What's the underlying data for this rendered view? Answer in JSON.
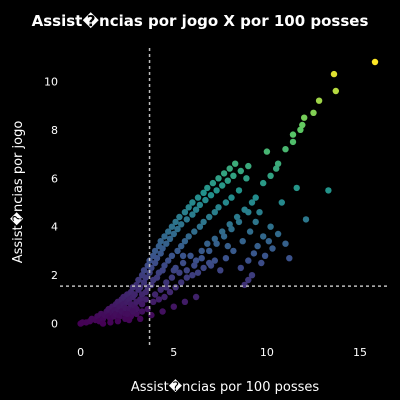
{
  "chart_data": {
    "type": "scatter",
    "title": "Assist�ncias por jogo X por 100 posses",
    "xlabel": "Assist�ncias por 100 posses",
    "ylabel": "Assist�ncias por jogo",
    "x_ticks": [
      0,
      5,
      10,
      15
    ],
    "y_ticks": [
      0,
      2,
      4,
      6,
      8,
      10
    ],
    "xlim": [
      -1,
      16.5
    ],
    "ylim": [
      -0.8,
      11.5
    ],
    "reference_lines": {
      "vertical_x": 3.7,
      "horizontal_y": 1.55
    },
    "colorscale": [
      "#440154",
      "#3b528b",
      "#21918c",
      "#5ec962",
      "#fde725"
    ],
    "background": "#000000",
    "grid": false,
    "points": [
      [
        0.0,
        0.0
      ],
      [
        0.1,
        0.05
      ],
      [
        0.3,
        0.05
      ],
      [
        0.5,
        0.1
      ],
      [
        0.6,
        0.2
      ],
      [
        0.8,
        0.15
      ],
      [
        0.9,
        0.3
      ],
      [
        1.0,
        0.1
      ],
      [
        1.1,
        0.4
      ],
      [
        1.2,
        0.2
      ],
      [
        1.3,
        0.35
      ],
      [
        1.4,
        0.5
      ],
      [
        1.5,
        0.3
      ],
      [
        1.5,
        0.6
      ],
      [
        1.6,
        0.2
      ],
      [
        1.7,
        0.45
      ],
      [
        1.7,
        0.7
      ],
      [
        1.8,
        0.3
      ],
      [
        1.8,
        0.55
      ],
      [
        1.9,
        0.8
      ],
      [
        1.9,
        0.4
      ],
      [
        2.0,
        0.6
      ],
      [
        2.0,
        0.9
      ],
      [
        2.1,
        0.3
      ],
      [
        2.1,
        0.7
      ],
      [
        2.2,
        1.0
      ],
      [
        2.2,
        0.5
      ],
      [
        2.3,
        0.8
      ],
      [
        2.3,
        1.1
      ],
      [
        2.4,
        0.4
      ],
      [
        2.4,
        0.65
      ],
      [
        2.5,
        0.9
      ],
      [
        2.5,
        1.2
      ],
      [
        2.6,
        0.6
      ],
      [
        2.6,
        1.0
      ],
      [
        2.7,
        1.3
      ],
      [
        2.7,
        0.8
      ],
      [
        2.8,
        1.1
      ],
      [
        2.8,
        1.5
      ],
      [
        2.9,
        0.7
      ],
      [
        2.9,
        1.2
      ],
      [
        3.0,
        1.6
      ],
      [
        3.0,
        0.9
      ],
      [
        3.1,
        1.4
      ],
      [
        3.1,
        1.8
      ],
      [
        3.2,
        1.0
      ],
      [
        3.2,
        1.5
      ],
      [
        3.3,
        2.0
      ],
      [
        3.3,
        1.2
      ],
      [
        3.4,
        1.7
      ],
      [
        3.4,
        2.2
      ],
      [
        3.5,
        1.3
      ],
      [
        3.5,
        1.9
      ],
      [
        3.6,
        2.4
      ],
      [
        3.6,
        1.5
      ],
      [
        3.7,
        2.1
      ],
      [
        3.7,
        2.6
      ],
      [
        3.8,
        1.6
      ],
      [
        3.8,
        2.3
      ],
      [
        3.9,
        2.8
      ],
      [
        3.9,
        1.8
      ],
      [
        4.0,
        2.5
      ],
      [
        4.0,
        3.0
      ],
      [
        4.1,
        1.9
      ],
      [
        4.1,
        2.7
      ],
      [
        4.2,
        3.2
      ],
      [
        4.2,
        2.1
      ],
      [
        4.3,
        2.9
      ],
      [
        4.3,
        3.4
      ],
      [
        4.4,
        2.2
      ],
      [
        4.4,
        3.1
      ],
      [
        4.5,
        3.6
      ],
      [
        4.5,
        2.4
      ],
      [
        4.6,
        3.3
      ],
      [
        4.7,
        3.8
      ],
      [
        4.7,
        2.6
      ],
      [
        4.8,
        3.5
      ],
      [
        4.9,
        4.0
      ],
      [
        4.9,
        2.8
      ],
      [
        5.0,
        3.7
      ],
      [
        5.0,
        2.2
      ],
      [
        5.1,
        4.2
      ],
      [
        5.2,
        3.0
      ],
      [
        5.2,
        3.9
      ],
      [
        5.3,
        4.4
      ],
      [
        5.4,
        3.2
      ],
      [
        5.4,
        4.1
      ],
      [
        5.5,
        2.5
      ],
      [
        5.6,
        4.6
      ],
      [
        5.6,
        3.4
      ],
      [
        5.7,
        4.3
      ],
      [
        5.8,
        4.8
      ],
      [
        5.8,
        3.6
      ],
      [
        5.9,
        2.8
      ],
      [
        6.0,
        4.5
      ],
      [
        6.0,
        5.0
      ],
      [
        6.1,
        3.8
      ],
      [
        6.2,
        4.7
      ],
      [
        6.2,
        2.6
      ],
      [
        6.3,
        5.2
      ],
      [
        6.4,
        4.0
      ],
      [
        6.4,
        4.9
      ],
      [
        6.5,
        3.0
      ],
      [
        6.6,
        5.4
      ],
      [
        6.6,
        4.2
      ],
      [
        6.7,
        5.1
      ],
      [
        6.8,
        3.3
      ],
      [
        6.8,
        5.6
      ],
      [
        6.9,
        4.4
      ],
      [
        7.0,
        5.3
      ],
      [
        7.0,
        2.4
      ],
      [
        7.1,
        5.8
      ],
      [
        7.2,
        4.6
      ],
      [
        7.2,
        3.5
      ],
      [
        7.3,
        5.5
      ],
      [
        7.4,
        6.0
      ],
      [
        7.4,
        4.8
      ],
      [
        7.5,
        2.2
      ],
      [
        7.6,
        5.7
      ],
      [
        7.6,
        3.8
      ],
      [
        7.7,
        6.2
      ],
      [
        7.8,
        5.0
      ],
      [
        7.8,
        2.7
      ],
      [
        7.9,
        5.9
      ],
      [
        8.0,
        6.4
      ],
      [
        8.0,
        4.1
      ],
      [
        8.1,
        5.2
      ],
      [
        8.2,
        3.0
      ],
      [
        8.2,
        6.1
      ],
      [
        8.3,
        6.6
      ],
      [
        8.4,
        4.4
      ],
      [
        8.5,
        5.5
      ],
      [
        8.6,
        2.3
      ],
      [
        8.6,
        6.3
      ],
      [
        8.7,
        3.4
      ],
      [
        8.8,
        4.7
      ],
      [
        8.9,
        6.0
      ],
      [
        9.0,
        2.6
      ],
      [
        9.0,
        6.5
      ],
      [
        9.1,
        3.8
      ],
      [
        9.2,
        5.0
      ],
      [
        9.3,
        2.9
      ],
      [
        9.4,
        4.2
      ],
      [
        9.5,
        3.2
      ],
      [
        9.6,
        4.6
      ],
      [
        9.7,
        2.5
      ],
      [
        9.8,
        3.6
      ],
      [
        9.9,
        2.8
      ],
      [
        10.0,
        7.1
      ],
      [
        10.1,
        3.4
      ],
      [
        10.2,
        4.0
      ],
      [
        10.3,
        3.1
      ],
      [
        10.5,
        6.4
      ],
      [
        10.6,
        3.7
      ],
      [
        10.8,
        5.0
      ],
      [
        11.0,
        3.3
      ],
      [
        11.2,
        2.7
      ],
      [
        11.4,
        7.5
      ],
      [
        11.6,
        5.6
      ],
      [
        11.8,
        8.0
      ],
      [
        12.0,
        8.5
      ],
      [
        12.1,
        4.3
      ],
      [
        12.5,
        8.7
      ],
      [
        12.8,
        9.2
      ],
      [
        13.3,
        5.5
      ],
      [
        13.6,
        10.3
      ],
      [
        13.7,
        9.6
      ],
      [
        15.8,
        10.8
      ],
      [
        2.4,
        0.2
      ],
      [
        2.7,
        0.3
      ],
      [
        3.0,
        0.4
      ],
      [
        3.3,
        0.5
      ],
      [
        3.6,
        0.6
      ],
      [
        3.9,
        0.9
      ],
      [
        4.2,
        1.0
      ],
      [
        4.5,
        1.1
      ],
      [
        4.8,
        1.3
      ],
      [
        5.1,
        1.5
      ],
      [
        5.4,
        1.7
      ],
      [
        5.7,
        1.9
      ],
      [
        6.0,
        2.0
      ],
      [
        6.3,
        2.1
      ],
      [
        6.6,
        2.3
      ],
      [
        6.9,
        2.5
      ],
      [
        7.2,
        2.6
      ],
      [
        8.8,
        1.6
      ],
      [
        9.0,
        1.8
      ],
      [
        9.2,
        2.0
      ],
      [
        1.2,
        0.0
      ],
      [
        1.6,
        0.05
      ],
      [
        2.0,
        0.1
      ],
      [
        2.6,
        0.15
      ],
      [
        3.2,
        0.2
      ],
      [
        3.8,
        0.35
      ],
      [
        4.4,
        0.5
      ],
      [
        5.0,
        0.7
      ],
      [
        5.6,
        0.9
      ],
      [
        6.2,
        1.1
      ],
      [
        4.6,
        1.5
      ],
      [
        4.9,
        1.9
      ],
      [
        5.3,
        2.1
      ],
      [
        5.7,
        2.2
      ],
      [
        6.1,
        2.4
      ],
      [
        6.5,
        2.7
      ],
      [
        6.9,
        3.0
      ],
      [
        7.3,
        3.3
      ],
      [
        7.7,
        3.6
      ],
      [
        8.1,
        3.9
      ],
      [
        9.0,
        4.6
      ],
      [
        9.4,
        5.2
      ],
      [
        9.8,
        5.8
      ],
      [
        10.2,
        6.1
      ],
      [
        10.6,
        6.6
      ],
      [
        11.0,
        7.2
      ],
      [
        11.4,
        7.8
      ],
      [
        11.9,
        8.2
      ],
      [
        8.5,
        4.2
      ],
      [
        7.9,
        3.2
      ],
      [
        3.5,
        1.0
      ],
      [
        3.3,
        0.8
      ],
      [
        3.0,
        0.6
      ],
      [
        2.8,
        0.5
      ],
      [
        2.5,
        0.4
      ],
      [
        4.0,
        1.2
      ],
      [
        4.3,
        1.4
      ],
      [
        4.6,
        1.7
      ],
      [
        5.1,
        2.3
      ],
      [
        5.5,
        2.8
      ]
    ]
  }
}
